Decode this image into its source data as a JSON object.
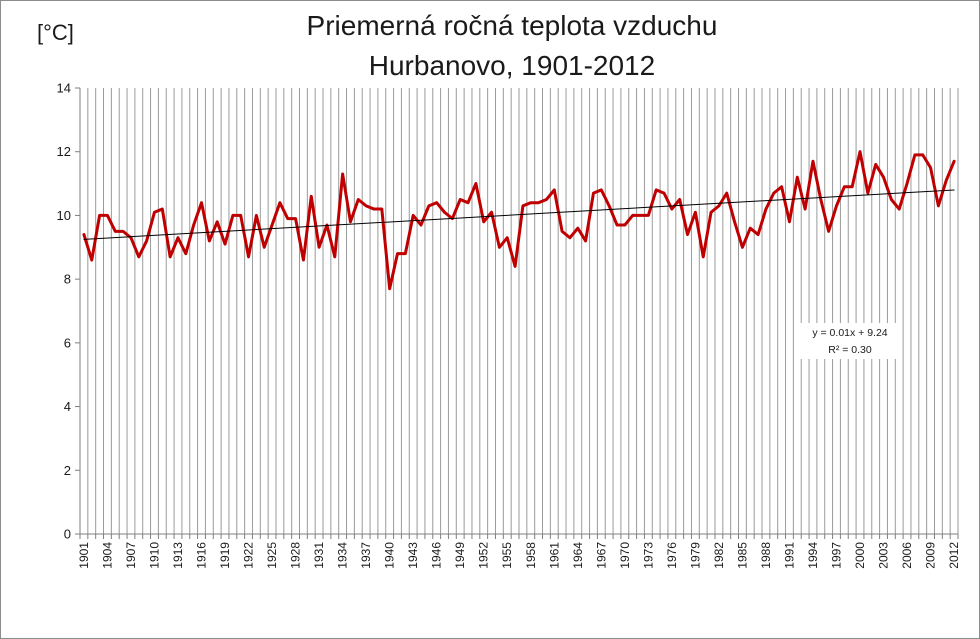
{
  "chart_data": {
    "type": "line",
    "title_line1": "Priemerná ročná teplota vzduchu",
    "title_line2": "Hurbanovo, 1901-2012",
    "unit_label": "[°C]",
    "xlabel": "",
    "ylabel": "",
    "ylim": [
      0,
      14
    ],
    "yticks": [
      0,
      2,
      4,
      6,
      8,
      10,
      12,
      14
    ],
    "x_range": [
      1901,
      2012
    ],
    "x_tick_step": 3,
    "grid": "vertical lines each year",
    "legend": "none",
    "series": [
      {
        "color": "#c00000",
        "x": [
          1901,
          1902,
          1903,
          1904,
          1905,
          1906,
          1907,
          1908,
          1909,
          1910,
          1911,
          1912,
          1913,
          1914,
          1915,
          1916,
          1917,
          1918,
          1919,
          1920,
          1921,
          1922,
          1923,
          1924,
          1925,
          1926,
          1927,
          1928,
          1929,
          1930,
          1931,
          1932,
          1933,
          1934,
          1935,
          1936,
          1937,
          1938,
          1939,
          1940,
          1941,
          1942,
          1943,
          1944,
          1945,
          1946,
          1947,
          1948,
          1949,
          1950,
          1951,
          1952,
          1953,
          1954,
          1955,
          1956,
          1957,
          1958,
          1959,
          1960,
          1961,
          1962,
          1963,
          1964,
          1965,
          1966,
          1967,
          1968,
          1969,
          1970,
          1971,
          1972,
          1973,
          1974,
          1975,
          1976,
          1977,
          1978,
          1979,
          1980,
          1981,
          1982,
          1983,
          1984,
          1985,
          1986,
          1987,
          1988,
          1989,
          1990,
          1991,
          1992,
          1993,
          1994,
          1995,
          1996,
          1997,
          1998,
          1999,
          2000,
          2001,
          2002,
          2003,
          2004,
          2005,
          2006,
          2007,
          2008,
          2009,
          2010,
          2011,
          2012
        ],
        "values": [
          9.4,
          8.6,
          10.0,
          10.0,
          9.5,
          9.5,
          9.3,
          8.7,
          9.2,
          10.1,
          10.2,
          8.7,
          9.3,
          8.8,
          9.7,
          10.4,
          9.2,
          9.8,
          9.1,
          10.0,
          10.0,
          8.7,
          10.0,
          9.0,
          9.7,
          10.4,
          9.9,
          9.9,
          8.6,
          10.6,
          9.0,
          9.7,
          8.7,
          11.3,
          9.8,
          10.5,
          10.3,
          10.2,
          10.2,
          7.7,
          8.8,
          8.8,
          10.0,
          9.7,
          10.3,
          10.4,
          10.1,
          9.9,
          10.5,
          10.4,
          11.0,
          9.8,
          10.1,
          9.0,
          9.3,
          8.4,
          10.3,
          10.4,
          10.4,
          10.5,
          10.8,
          9.5,
          9.3,
          9.6,
          9.2,
          10.7,
          10.8,
          10.3,
          9.7,
          9.7,
          10.0,
          10.0,
          10.0,
          10.8,
          10.7,
          10.2,
          10.5,
          9.4,
          10.1,
          8.7,
          10.1,
          10.3,
          10.7,
          9.8,
          9.0,
          9.6,
          9.4,
          10.2,
          10.7,
          10.9,
          9.8,
          11.2,
          10.2,
          11.7,
          10.5,
          9.5,
          10.3,
          10.9,
          10.9,
          12.0,
          10.7,
          11.6,
          11.2,
          10.5,
          10.2,
          11.0,
          11.9,
          11.9,
          11.5,
          10.3,
          11.1,
          11.7
        ]
      },
      {
        "type": "trendline",
        "color": "#000000",
        "x": [
          1901,
          2012
        ],
        "values": [
          9.25,
          10.8
        ]
      }
    ],
    "trend_equation": "y = 0.01x + 9.24",
    "trend_r2": "R² = 0.30"
  }
}
